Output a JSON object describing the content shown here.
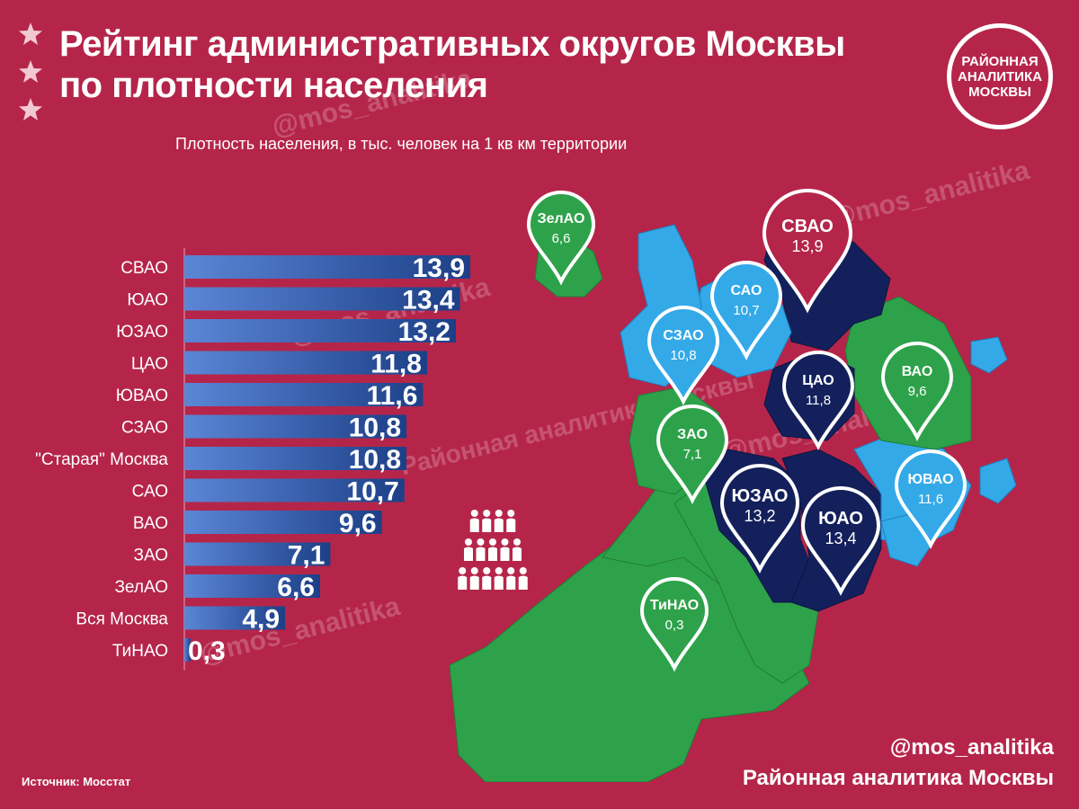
{
  "header": {
    "title_line1": "Рейтинг административных округов Москвы",
    "title_line2": "по плотности населения",
    "subtitle": "Плотность населения, в тыс. человек на 1 кв км территории"
  },
  "logo": {
    "line1": "РАЙОННАЯ",
    "line2": "АНАЛИТИКА",
    "line3": "МОСКВЫ"
  },
  "watermark": "@mos_analitika",
  "watermark2": "Районная аналитика Москвы",
  "footer": {
    "source": "Источник: Мосстат",
    "handle": "@mos_analitika",
    "org": "Районная аналитика Москвы"
  },
  "colors": {
    "background": "#b5254a",
    "bar_start": "#5b86d6",
    "bar_end": "#1c3f87",
    "map_dark": "#13205c",
    "map_light": "#34a9e8",
    "map_green": "#2ea24a"
  },
  "chart_data": {
    "type": "bar",
    "orientation": "horizontal",
    "categories": [
      "СВАО",
      "ЮАО",
      "ЮЗАО",
      "ЦАО",
      "ЮВАО",
      "СЗАО",
      "\"Старая\" Москва",
      "САО",
      "ВАО",
      "ЗАО",
      "ЗелАО",
      "Вся Москва",
      "ТиНАО"
    ],
    "value_labels": [
      "13,9",
      "13,4",
      "13,2",
      "11,8",
      "11,6",
      "10,8",
      "10,8",
      "10,7",
      "9,6",
      "7,1",
      "6,6",
      "4,9",
      "0,3"
    ],
    "values": [
      13.9,
      13.4,
      13.2,
      11.8,
      11.6,
      10.8,
      10.8,
      10.7,
      9.6,
      7.1,
      6.6,
      4.9,
      0.3
    ],
    "xlim": [
      0,
      13.9
    ]
  },
  "map": {
    "markers": [
      {
        "name": "ЗелАО",
        "value": "6,6",
        "fill": "#2ea24a"
      },
      {
        "name": "СВАО",
        "value": "13,9",
        "fill": "#b5254a"
      },
      {
        "name": "САО",
        "value": "10,7",
        "fill": "#34a9e8"
      },
      {
        "name": "СЗАО",
        "value": "10,8",
        "fill": "#34a9e8"
      },
      {
        "name": "ЦАО",
        "value": "11,8",
        "fill": "#13205c"
      },
      {
        "name": "ВАО",
        "value": "9,6",
        "fill": "#2ea24a"
      },
      {
        "name": "ЗАО",
        "value": "7,1",
        "fill": "#2ea24a"
      },
      {
        "name": "ЮВАО",
        "value": "11,6",
        "fill": "#34a9e8"
      },
      {
        "name": "ЮЗАО",
        "value": "13,2",
        "fill": "#13205c"
      },
      {
        "name": "ЮАО",
        "value": "13,4",
        "fill": "#13205c"
      },
      {
        "name": "ТиНАО",
        "value": "0,3",
        "fill": "#2ea24a"
      }
    ]
  }
}
